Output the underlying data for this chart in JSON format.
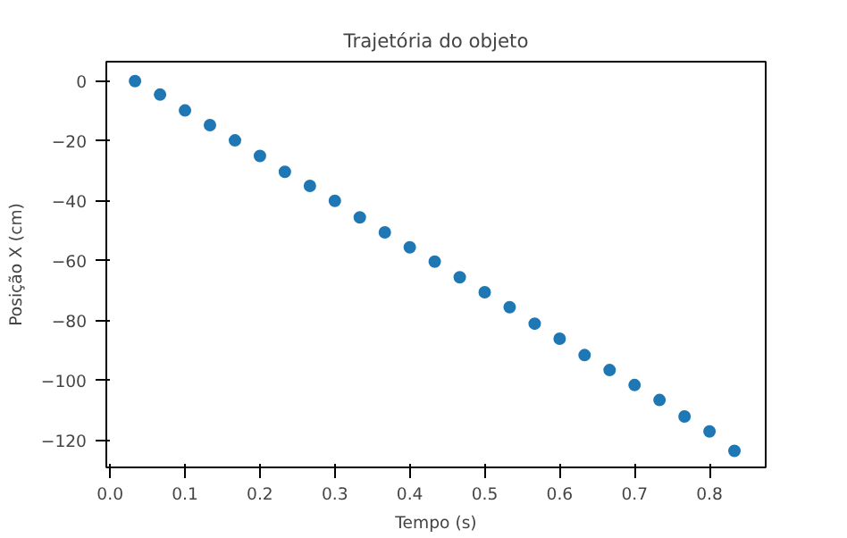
{
  "chart_data": {
    "type": "scatter",
    "title": "Trajetória do objeto",
    "xlabel": "Tempo (s)",
    "ylabel": "Posição X (cm)",
    "x": [
      0.0333,
      0.0667,
      0.1,
      0.1333,
      0.1667,
      0.2,
      0.2333,
      0.2667,
      0.3,
      0.3333,
      0.3667,
      0.4,
      0.4333,
      0.4667,
      0.5,
      0.5333,
      0.5667,
      0.6,
      0.6333,
      0.6667,
      0.7,
      0.7333,
      0.7667,
      0.8,
      0.8333
    ],
    "series": [
      {
        "color": "#1f77b4",
        "values": [
          0,
          -4.5,
          -9.8,
          -14.7,
          -19.8,
          -25,
          -30.3,
          -35,
          -40,
          -45.5,
          -50.5,
          -55.5,
          -60.3,
          -65.5,
          -70.5,
          -75.5,
          -81,
          -86,
          -91.5,
          -96.5,
          -101.5,
          -106.5,
          -112,
          -117,
          -123.5
        ]
      }
    ],
    "xlim": [
      -0.005,
      0.875
    ],
    "ylim": [
      -129,
      6.5
    ],
    "xticks": [
      {
        "value": 0,
        "label": "0.0"
      },
      0.1,
      0.2,
      0.3,
      0.4,
      0.5,
      0.6,
      0.7,
      0.8
    ],
    "yticks": [
      -120,
      -100,
      -80,
      -60,
      -40,
      -20,
      0
    ],
    "grid": false,
    "marker": "circle"
  }
}
